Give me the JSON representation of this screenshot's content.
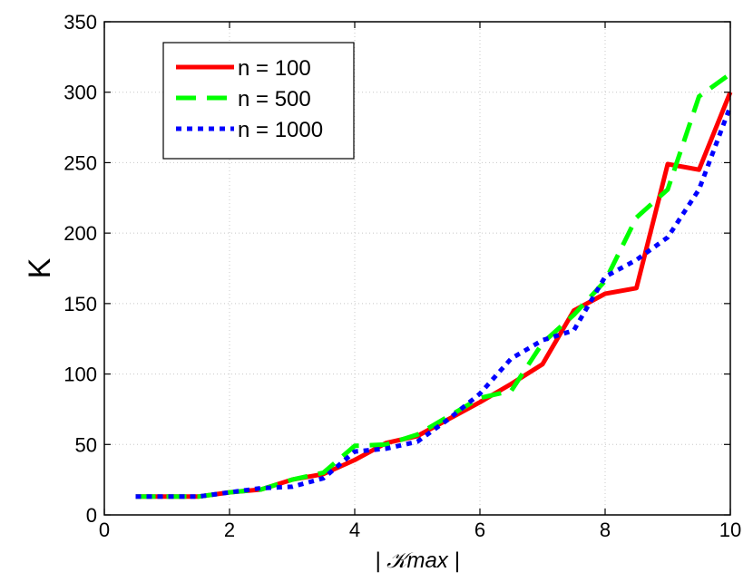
{
  "chart_data": {
    "type": "line",
    "xlabel": "| 𝒦max |",
    "ylabel": "K",
    "xlim": [
      0,
      10
    ],
    "ylim": [
      0,
      350
    ],
    "xticks": [
      0,
      2,
      4,
      6,
      8,
      10
    ],
    "yticks": [
      0,
      50,
      100,
      150,
      200,
      250,
      300,
      350
    ],
    "grid": true,
    "legend_position": "top-left",
    "x": [
      0.5,
      1,
      1.5,
      2,
      2.5,
      3,
      3.5,
      4,
      4.5,
      5,
      5.5,
      6,
      6.5,
      7,
      7.5,
      8,
      8.5,
      9,
      9.5,
      10
    ],
    "series": [
      {
        "name": "n = 100",
        "color": "#ff0000",
        "style": "solid",
        "values": [
          13,
          13,
          13,
          16,
          18,
          25,
          29,
          39,
          51,
          56,
          68,
          80,
          93,
          107,
          145,
          157,
          161,
          249,
          245,
          300
        ]
      },
      {
        "name": "n = 500",
        "color": "#00ff00",
        "style": "dashed",
        "values": [
          13,
          13,
          13,
          16,
          18,
          25,
          30,
          49,
          50,
          57,
          70,
          83,
          88,
          122,
          142,
          166,
          211,
          231,
          297,
          313
        ]
      },
      {
        "name": "n = 1000",
        "color": "#0000ff",
        "style": "dotted",
        "values": [
          13,
          13,
          13,
          16,
          19,
          20,
          26,
          45,
          47,
          52,
          68,
          86,
          111,
          124,
          131,
          169,
          181,
          197,
          231,
          290
        ]
      }
    ]
  }
}
